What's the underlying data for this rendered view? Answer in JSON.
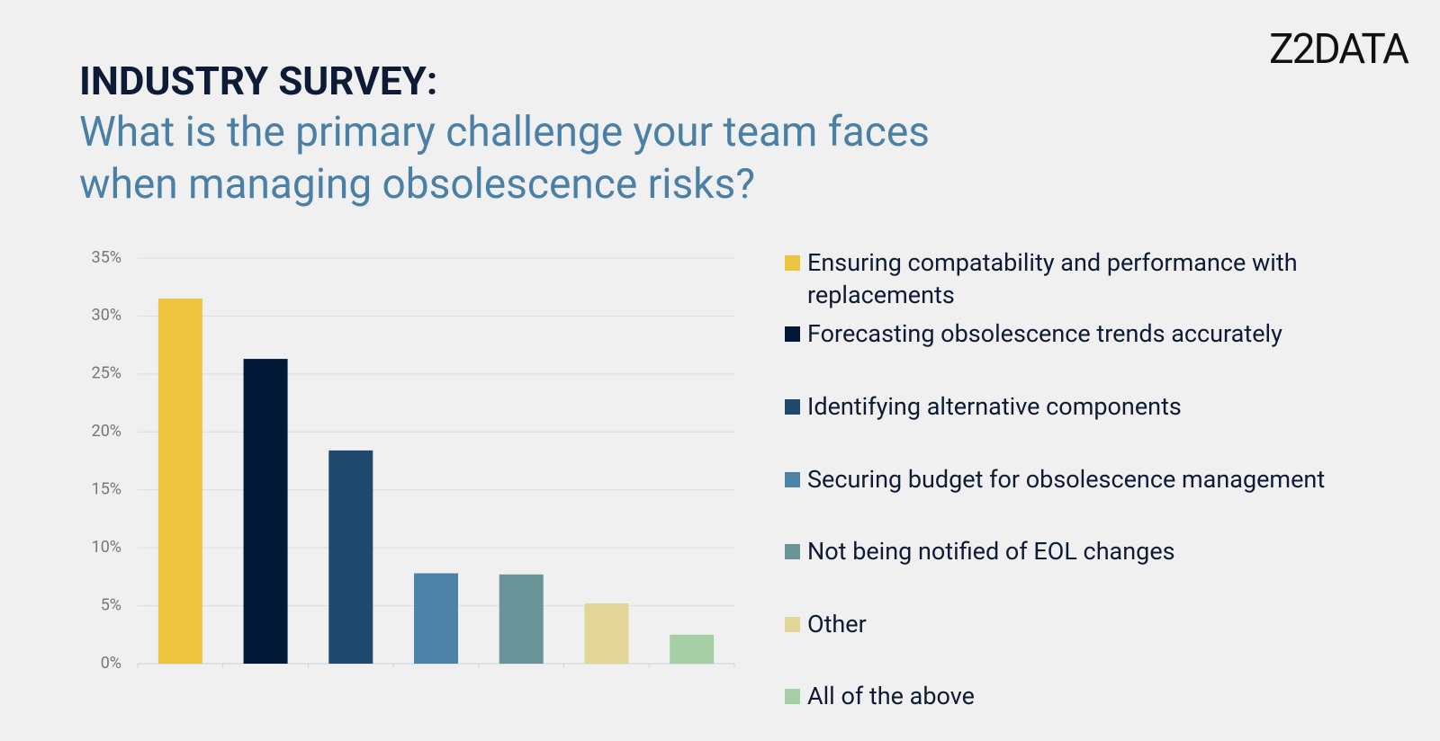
{
  "logo": "Z2DATA",
  "chart_data": {
    "type": "bar",
    "title": "INDUSTRY SURVEY:",
    "subtitle": "What is the primary challenge your team faces when managing obsolescence risks?",
    "categories": [
      "Ensuring compatability and performance with replacements",
      "Forecasting obsolescence trends accurately",
      "Identifying alternative components",
      "Securing budget for obsolescence management",
      "Not being notified of EOL changes",
      "Other",
      "All of the above"
    ],
    "values": [
      31.5,
      26.3,
      18.4,
      7.8,
      7.7,
      5.2,
      2.5
    ],
    "colors": [
      "#ecc440",
      "#011936",
      "#1f4a6e",
      "#4c82a8",
      "#6a9498",
      "#e2d597",
      "#a6cfa5"
    ],
    "ylim": [
      0,
      35
    ],
    "yticks": [
      {
        "value": 0,
        "label": "0%"
      },
      {
        "value": 5,
        "label": "5%"
      },
      {
        "value": 10,
        "label": "10%"
      },
      {
        "value": 15,
        "label": "15%"
      },
      {
        "value": 20,
        "label": "20%"
      },
      {
        "value": 25,
        "label": "25%"
      },
      {
        "value": 30,
        "label": "30%"
      },
      {
        "value": 35,
        "label": "35%"
      }
    ],
    "grid": true,
    "legend": "right"
  }
}
